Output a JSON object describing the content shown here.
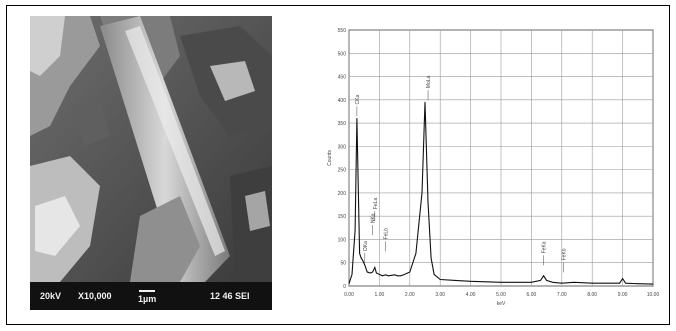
{
  "sem": {
    "voltage": "20kV",
    "magnification": "X10,000",
    "scale": "1µm",
    "session": "12 46 SEI"
  },
  "chart_data": {
    "type": "line",
    "xlabel": "keV",
    "ylabel": "Counts",
    "xlim": [
      0,
      10
    ],
    "ylim": [
      0,
      550
    ],
    "x_ticks": [
      "0.00",
      "1.00",
      "2.00",
      "3.00",
      "4.00",
      "5.00",
      "6.00",
      "7.00",
      "8.00",
      "9.00",
      "10.00"
    ],
    "y_ticks": [
      "0",
      "50",
      "100",
      "150",
      "200",
      "250",
      "300",
      "350",
      "400",
      "450",
      "500",
      "550"
    ],
    "grid": true,
    "series": [
      {
        "x": [
          0.0,
          0.1,
          0.2,
          0.26,
          0.3,
          0.35,
          0.4,
          0.45,
          0.52,
          0.6,
          0.7,
          0.78,
          0.85,
          0.9,
          1.0,
          1.1,
          1.2,
          1.3,
          1.4,
          1.5,
          1.6,
          1.7,
          1.8,
          2.0,
          2.2,
          2.4,
          2.5,
          2.6,
          2.7,
          2.8,
          3.0,
          3.5,
          4.0,
          4.5,
          5.0,
          5.5,
          6.0,
          6.3,
          6.4,
          6.5,
          6.7,
          7.0,
          7.4,
          8.0,
          8.5,
          8.9,
          9.0,
          9.1,
          9.5,
          10.0
        ],
        "y": [
          5,
          25,
          120,
          360,
          230,
          70,
          60,
          55,
          45,
          30,
          28,
          30,
          40,
          28,
          25,
          22,
          24,
          22,
          23,
          24,
          22,
          22,
          24,
          30,
          70,
          200,
          395,
          180,
          60,
          25,
          14,
          12,
          10,
          9,
          8,
          8,
          8,
          12,
          22,
          12,
          8,
          6,
          8,
          6,
          6,
          6,
          16,
          6,
          5,
          4
        ]
      }
    ],
    "annotations": [
      {
        "label": "CKa",
        "x": 0.26,
        "y": 360
      },
      {
        "label": "OKa",
        "x": 0.52,
        "y": 45
      },
      {
        "label": "NKa",
        "x": 0.78,
        "y": 105
      },
      {
        "label": "FeLa",
        "x": 0.85,
        "y": 135
      },
      {
        "label": "FeLb",
        "x": 1.2,
        "y": 70
      },
      {
        "label": "MoLa",
        "x": 2.6,
        "y": 395
      },
      {
        "label": "FeKa",
        "x": 6.4,
        "y": 40
      },
      {
        "label": "FeKb",
        "x": 7.06,
        "y": 25
      }
    ]
  }
}
